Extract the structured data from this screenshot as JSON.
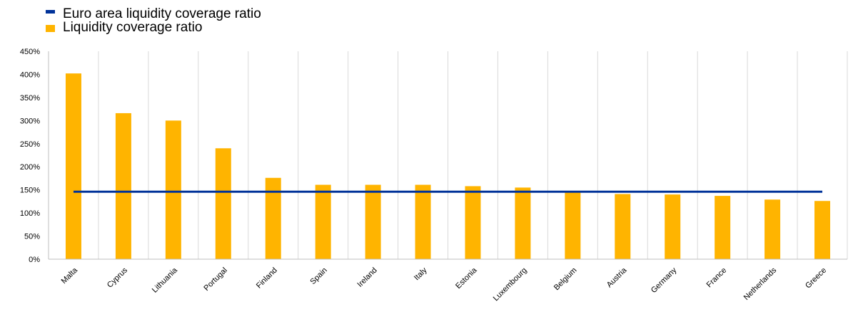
{
  "chart_data": {
    "type": "bar",
    "categories": [
      "Malta",
      "Cyprus",
      "Lithuania",
      "Portugal",
      "Finland",
      "Spain",
      "Ireland",
      "Italy",
      "Estonia",
      "Luxembourg",
      "Belgium",
      "Austria",
      "Germany",
      "France",
      "Netherlands",
      "Greece"
    ],
    "series": [
      {
        "name": "Liquidity coverage ratio",
        "type": "bar",
        "color": "#FFB400",
        "values": [
          402,
          316,
          300,
          240,
          176,
          161,
          161,
          161,
          158,
          155,
          147,
          141,
          140,
          137,
          129,
          126
        ]
      },
      {
        "name": "Euro area liquidity coverage ratio",
        "type": "line",
        "color": "#003299",
        "values": [
          146,
          146,
          146,
          146,
          146,
          146,
          146,
          146,
          146,
          146,
          146,
          146,
          146,
          146,
          146,
          146
        ]
      }
    ],
    "ylim": [
      0,
      450
    ],
    "yticks": [
      "0%",
      "50%",
      "100%",
      "150%",
      "200%",
      "250%",
      "300%",
      "350%",
      "400%",
      "450%"
    ],
    "grid": "vertical",
    "legend_position": "top-left",
    "legend": [
      {
        "label": "Euro area liquidity coverage ratio",
        "color": "#003299",
        "shape": "line"
      },
      {
        "label": "Liquidity coverage ratio",
        "color": "#FFB400",
        "shape": "square"
      }
    ]
  }
}
